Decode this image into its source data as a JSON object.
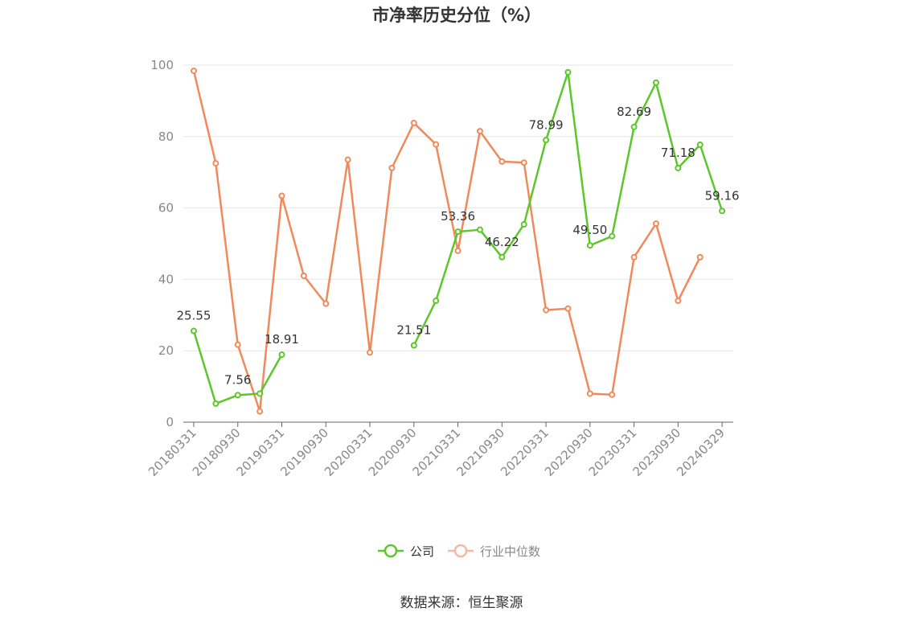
{
  "chart_data": {
    "type": "line",
    "title": "市净率历史分位（%）",
    "xlabel": "",
    "ylabel": "",
    "ylim": [
      0,
      100
    ],
    "yticks": [
      0,
      20,
      40,
      60,
      80,
      100
    ],
    "x": [
      "20180331",
      "20180630",
      "20180930",
      "20181231",
      "20190331",
      "20190630",
      "20190930",
      "20191231",
      "20200331",
      "20200630",
      "20200930",
      "20201231",
      "20210331",
      "20210630",
      "20210930",
      "20211231",
      "20220331",
      "20220630",
      "20220930",
      "20221231",
      "20230331",
      "20230630",
      "20230930",
      "20231231",
      "20240329"
    ],
    "xtick_labels": [
      "20180331",
      "20180930",
      "20190331",
      "20190930",
      "20200331",
      "20200930",
      "20210331",
      "20210930",
      "20220331",
      "20220930",
      "20230331",
      "20230930",
      "20240329"
    ],
    "grid": true,
    "legend_position": "bottom",
    "series": [
      {
        "name": "公司",
        "color": "#5cc72a",
        "values": [
          25.55,
          5.2,
          7.56,
          8.0,
          18.91,
          null,
          null,
          null,
          null,
          null,
          21.51,
          34.0,
          53.36,
          53.9,
          46.22,
          55.4,
          78.99,
          98.0,
          49.5,
          52.1,
          82.69,
          95.1,
          71.18,
          77.7,
          59.16
        ],
        "labels": [
          "25.55",
          "",
          "7.56",
          "",
          "18.91",
          "",
          "",
          "",
          "",
          "",
          "21.51",
          "",
          "53.36",
          "",
          "46.22",
          "",
          "78.99",
          "",
          "49.50",
          "",
          "82.69",
          "",
          "71.18",
          "",
          "59.16"
        ]
      },
      {
        "name": "行业中位数",
        "color": "#f08a5a",
        "values": [
          98.4,
          72.5,
          21.7,
          3.0,
          63.4,
          41.0,
          33.2,
          73.5,
          19.5,
          71.2,
          83.8,
          77.8,
          48.0,
          81.5,
          73.0,
          72.7,
          31.4,
          31.8,
          8.0,
          7.7,
          46.2,
          55.6,
          34.0,
          46.2,
          null
        ]
      }
    ]
  },
  "source": "数据来源：恒生聚源"
}
